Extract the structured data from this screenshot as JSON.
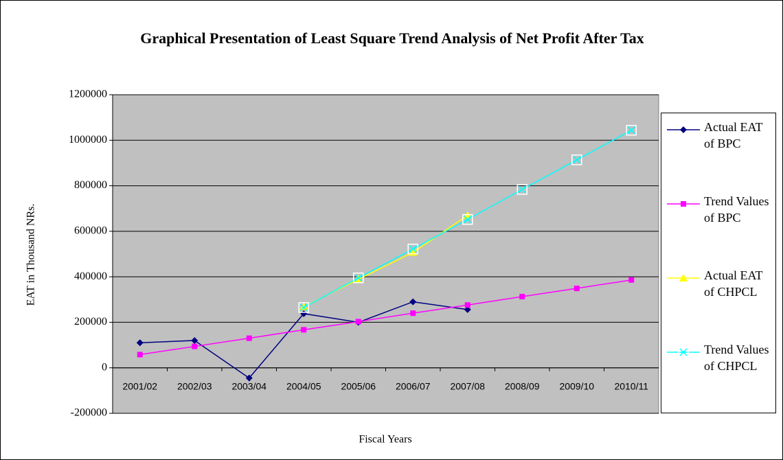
{
  "chart_data": {
    "type": "line",
    "title": "Graphical Presentation of Least Square Trend Analysis of Net Profit After Tax",
    "x_label": "Fiscal Years",
    "y_label": "EAT in Thousand NRs.",
    "categories": [
      "2001/02",
      "2002/03",
      "2003/04",
      "2004/05",
      "2005/06",
      "2006/07",
      "2007/08",
      "2008/09",
      "2009/10",
      "2010/11"
    ],
    "series": [
      {
        "name": "Actual EAT of BPC",
        "color": "#000080",
        "marker": "diamond",
        "values": [
          110000,
          120000,
          -45000,
          238000,
          200000,
          290000,
          256000,
          null,
          null,
          null
        ]
      },
      {
        "name": "Trend Values of BPC",
        "color": "#ff00ff",
        "marker": "square",
        "values": [
          58000,
          94000,
          130000,
          167000,
          203000,
          240000,
          276000,
          313000,
          349000,
          386000
        ]
      },
      {
        "name": "Actual EAT of CHPCL",
        "color": "#ffff00",
        "marker": "triangle",
        "values": [
          null,
          null,
          null,
          268000,
          389000,
          507000,
          670000,
          null,
          null,
          null
        ]
      },
      {
        "name": "Trend Values of CHPCL",
        "color": "#00ffff",
        "marker": "x",
        "values": [
          null,
          null,
          null,
          265000,
          395000,
          522000,
          652000,
          784000,
          914000,
          1044000
        ]
      }
    ],
    "ylim": [
      -200000,
      1200000
    ],
    "yticks": [
      -200000,
      0,
      200000,
      400000,
      600000,
      800000,
      1000000,
      1200000
    ],
    "grid": true,
    "plot_background": "#c0c0c0",
    "legend": "right"
  }
}
